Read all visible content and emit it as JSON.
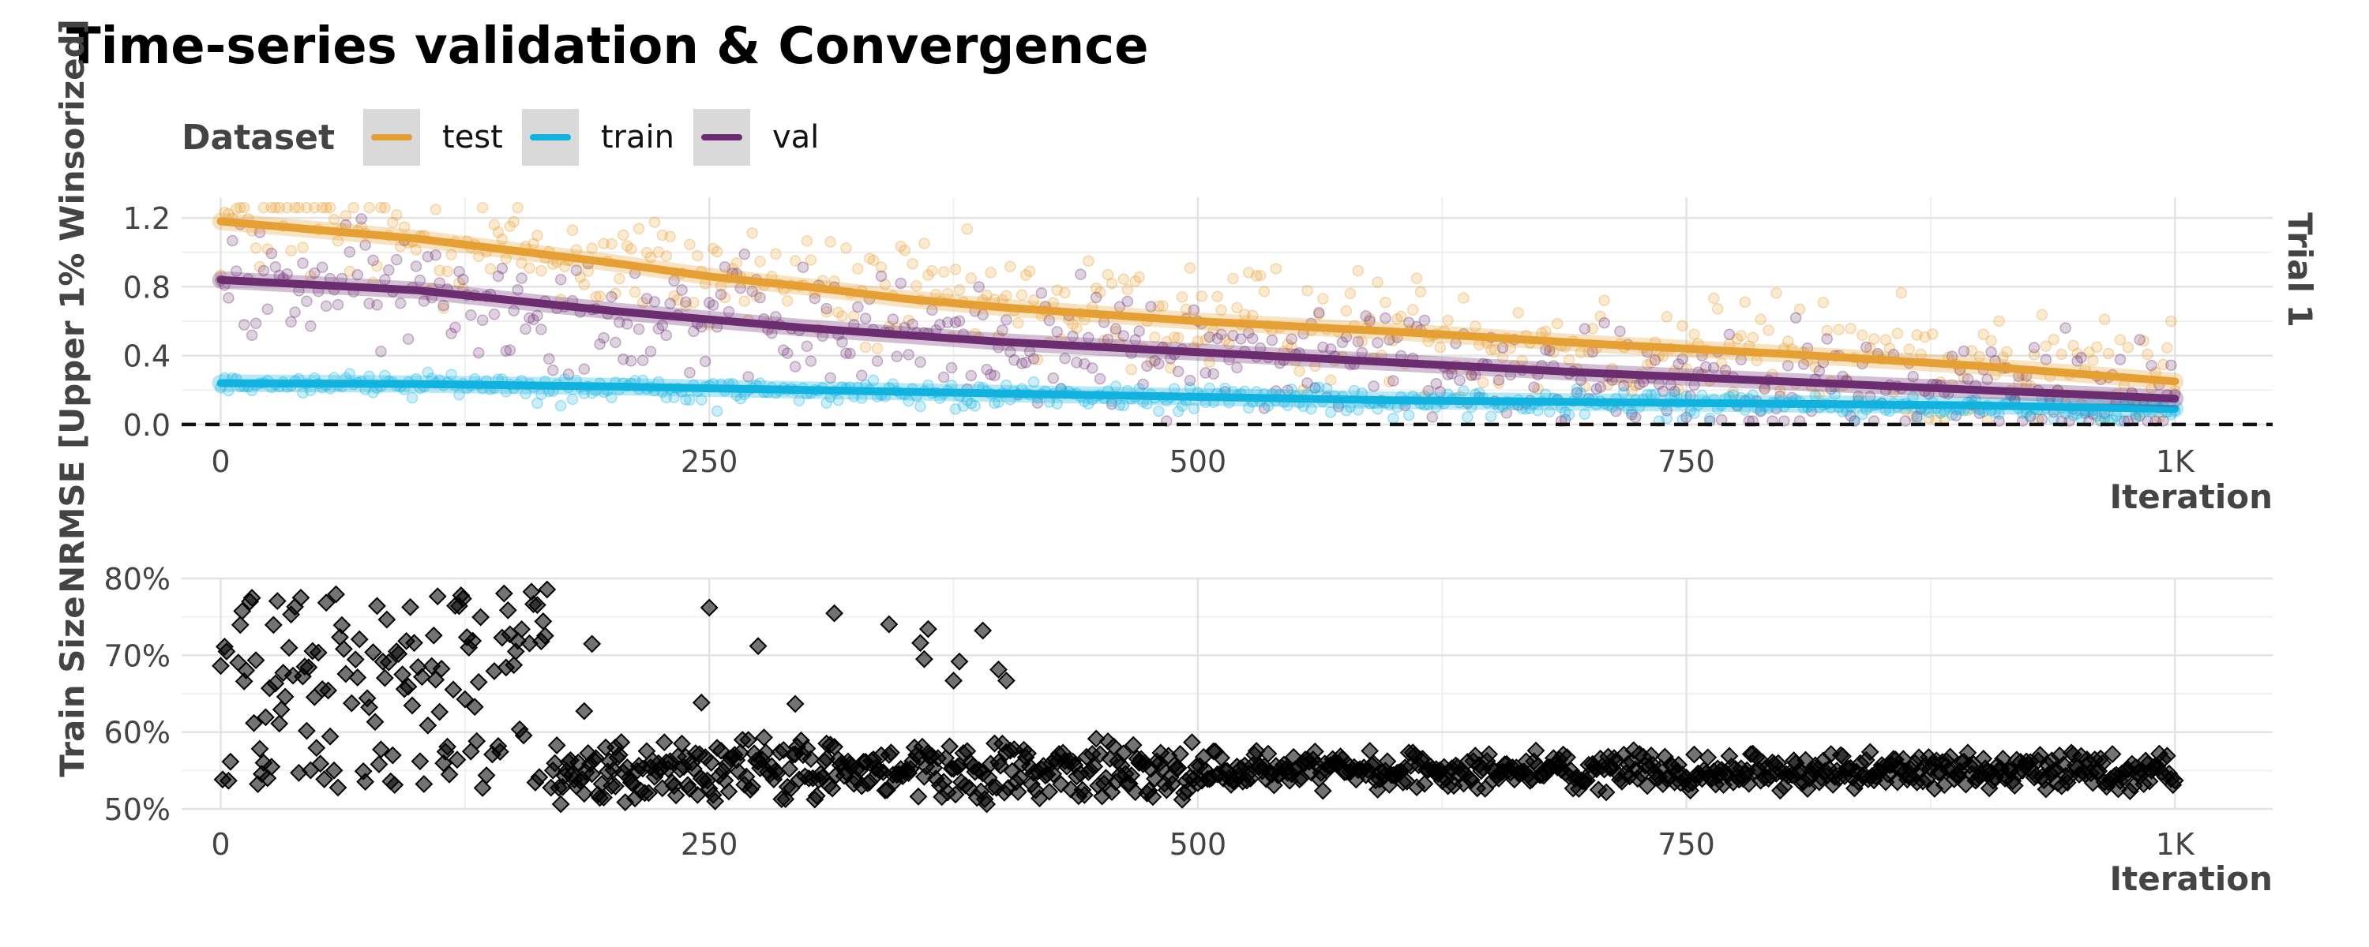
{
  "title": "Time-series validation & Convergence",
  "legend": {
    "title": "Dataset",
    "items": [
      {
        "label": "test",
        "color": "#E69F32"
      },
      {
        "label": "train",
        "color": "#10B2E0"
      },
      {
        "label": "val",
        "color": "#6B2C70"
      }
    ]
  },
  "chart_data": [
    {
      "type": "scatter",
      "panel": "top",
      "facet_label": "Trial 1",
      "xlabel": "Iteration",
      "ylabel": "NRMSE [Upper 1% Winsorized]",
      "xlim": [
        -20,
        1050
      ],
      "ylim": [
        -0.01,
        1.32
      ],
      "x_ticks": [
        0,
        250,
        500,
        750,
        1000
      ],
      "x_tick_labels": [
        "0",
        "250",
        "500",
        "750",
        "1K"
      ],
      "y_ticks": [
        0.0,
        0.4,
        0.8,
        1.2
      ],
      "y_tick_labels": [
        "0.0",
        "0.4",
        "0.8",
        "1.2"
      ],
      "reference_line": {
        "y": 0.0,
        "style": "dashed"
      },
      "grid": true,
      "series": [
        {
          "name": "test",
          "color": "#E69F32",
          "trend_x": [
            0,
            100,
            200,
            250,
            300,
            350,
            400,
            500,
            600,
            700,
            800,
            900,
            1000
          ],
          "trend_y": [
            1.18,
            1.08,
            0.94,
            0.86,
            0.8,
            0.73,
            0.68,
            0.6,
            0.54,
            0.47,
            0.41,
            0.34,
            0.25
          ]
        },
        {
          "name": "train",
          "color": "#10B2E0",
          "trend_x": [
            0,
            100,
            200,
            300,
            400,
            500,
            600,
            700,
            800,
            900,
            1000
          ],
          "trend_y": [
            0.24,
            0.235,
            0.22,
            0.2,
            0.18,
            0.16,
            0.14,
            0.13,
            0.12,
            0.11,
            0.09
          ]
        },
        {
          "name": "val",
          "color": "#6B2C70",
          "trend_x": [
            0,
            100,
            200,
            300,
            400,
            500,
            600,
            700,
            800,
            900,
            1000
          ],
          "trend_y": [
            0.84,
            0.78,
            0.66,
            0.56,
            0.48,
            0.42,
            0.36,
            0.3,
            0.25,
            0.2,
            0.15
          ]
        }
      ]
    },
    {
      "type": "scatter",
      "panel": "bottom",
      "xlabel": "Iteration",
      "ylabel": "Train Size",
      "xlim": [
        -20,
        1050
      ],
      "ylim": [
        0.5,
        0.8
      ],
      "x_ticks": [
        0,
        250,
        500,
        750,
        1000
      ],
      "x_tick_labels": [
        "0",
        "250",
        "500",
        "750",
        "1K"
      ],
      "y_ticks": [
        0.5,
        0.6,
        0.7,
        0.8
      ],
      "y_tick_labels": [
        "50%",
        "60%",
        "70%",
        "80%"
      ],
      "grid": true,
      "marker": "diamond",
      "marker_color": "#000000",
      "pattern": "widely scattered 50%–79% for iterations 0–400, converging to about 55% from ~170 onward"
    }
  ]
}
